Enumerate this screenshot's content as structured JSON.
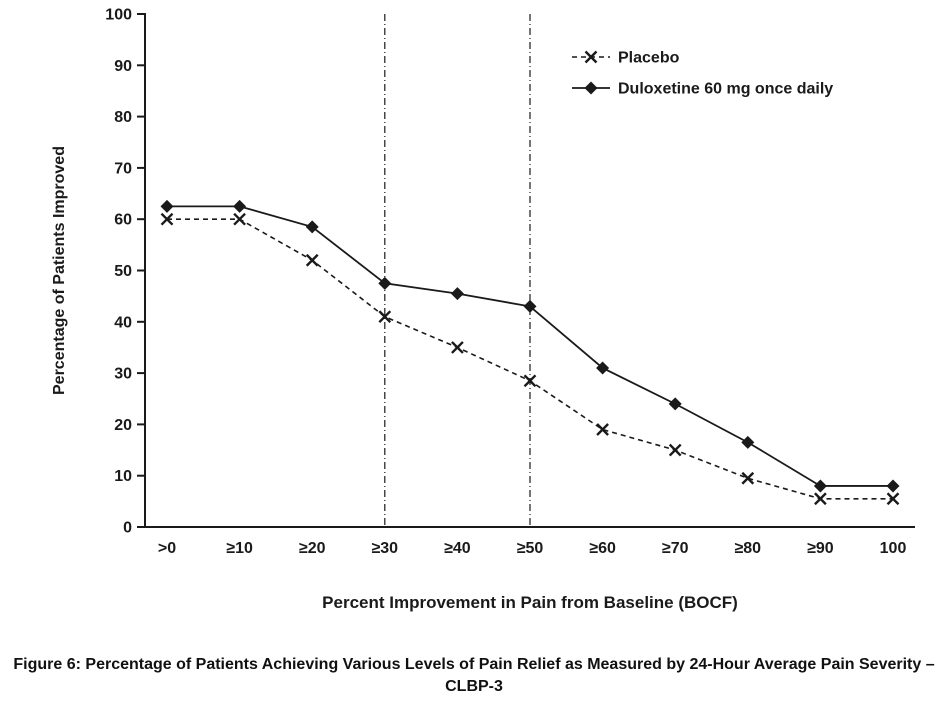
{
  "chart_data": {
    "type": "line",
    "title": "",
    "xlabel": "Percent Improvement in Pain from Baseline (BOCF)",
    "ylabel": "Percentage of Patients Improved",
    "categories": [
      ">0",
      "≥10",
      "≥20",
      "≥30",
      "≥40",
      "≥50",
      "≥60",
      "≥70",
      "≥80",
      "≥90",
      "100"
    ],
    "ylim": [
      0,
      100
    ],
    "ytick_step": 10,
    "grid": false,
    "legend_position": "top-right",
    "ink_color": "#1a1a1a",
    "reference_lines": {
      "style": "dash-dot",
      "at_categories": [
        "≥30",
        "≥50"
      ]
    },
    "series": [
      {
        "name": "Placebo",
        "marker": "x",
        "line": "dashed",
        "color": "#1a1a1a",
        "values": [
          60,
          60,
          52,
          41,
          35,
          28.5,
          19,
          15,
          9.5,
          5.5,
          5.5
        ]
      },
      {
        "name": "Duloxetine 60 mg once daily",
        "marker": "diamond",
        "line": "solid",
        "color": "#1a1a1a",
        "values": [
          62.5,
          62.5,
          58.5,
          47.5,
          45.5,
          43,
          31,
          24,
          16.5,
          8,
          8
        ]
      }
    ]
  },
  "caption": {
    "line1": "Figure 6: Percentage of Patients Achieving Various Levels of Pain Relief as Measured by 24-Hour Average Pain Severity –",
    "line2": "CLBP-3"
  }
}
